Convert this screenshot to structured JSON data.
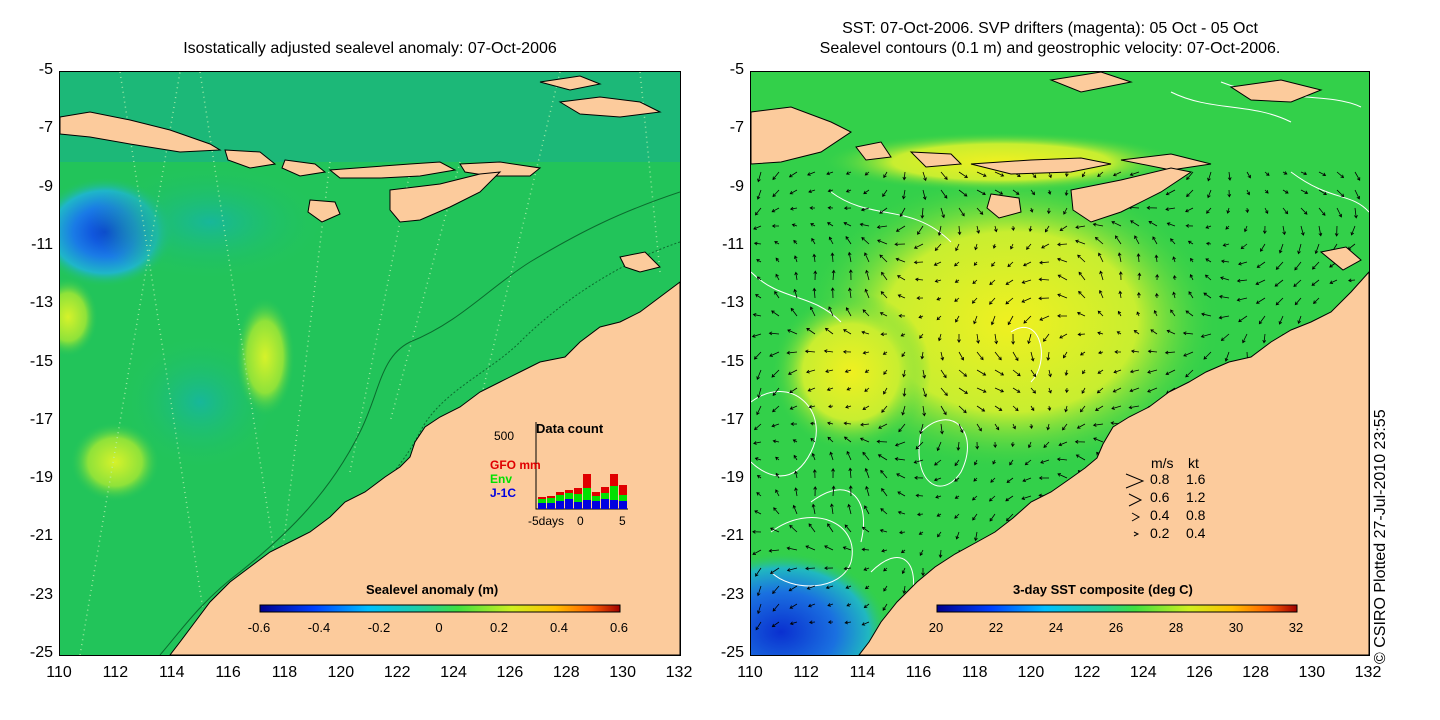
{
  "left": {
    "title": "Isostatically adjusted sealevel anomaly: 07-Oct-2006",
    "colorbar": {
      "title": "Sealevel anomaly (m)",
      "ticks": [
        "-0.6",
        "-0.4",
        "-0.2",
        "0",
        "0.2",
        "0.4",
        "0.6"
      ]
    },
    "inset": {
      "title": "Data count",
      "ymax_label": "500",
      "series": [
        {
          "name": "GFO mm",
          "color": "#e00000"
        },
        {
          "name": "Env",
          "color": "#00e000"
        },
        {
          "name": "J-1C",
          "color": "#0000e0"
        }
      ],
      "x_labels": [
        "-5days",
        "0",
        "5"
      ]
    }
  },
  "right": {
    "title_line1": "SST: 07-Oct-2006. SVP drifters (magenta): 05 Oct - 05 Oct",
    "title_line2": "Sealevel contours (0.1 m) and geostrophic velocity: 07-Oct-2006.",
    "colorbar": {
      "title": "3-day SST composite (deg C)",
      "ticks": [
        "20",
        "22",
        "24",
        "26",
        "28",
        "30",
        "32"
      ]
    },
    "velocity_legend": {
      "header_ms": "m/s",
      "header_kt": "kt",
      "rows": [
        {
          "ms": "0.8",
          "kt": "1.6"
        },
        {
          "ms": "0.6",
          "kt": "1.2"
        },
        {
          "ms": "0.4",
          "kt": "0.8"
        },
        {
          "ms": "0.2",
          "kt": "0.4"
        }
      ]
    }
  },
  "axes": {
    "lat_labels": [
      "-5",
      "-7",
      "-9",
      "-11",
      "-13",
      "-15",
      "-17",
      "-19",
      "-21",
      "-23",
      "-25"
    ],
    "lon_labels": [
      "110",
      "112",
      "114",
      "116",
      "118",
      "120",
      "122",
      "124",
      "126",
      "128",
      "130",
      "132"
    ]
  },
  "credit": "© CSIRO Plotted 27-Jul-2010 23:55",
  "colors": {
    "land": "#fccb9c",
    "ocean_left": "#22c45a",
    "ocean_right": "#33d04a"
  }
}
